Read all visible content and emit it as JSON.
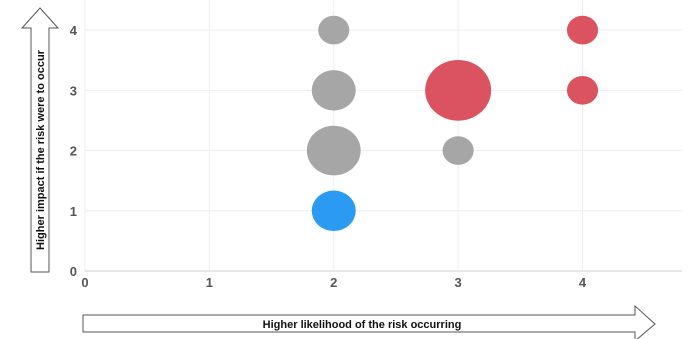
{
  "chart_data": {
    "type": "bubble",
    "xlabel": "Higher likelihood of the risk occurring",
    "ylabel": "Higher impact if the risk were to occur",
    "xlim": [
      0,
      4.8
    ],
    "ylim": [
      0,
      4.5
    ],
    "x_ticks": [
      0,
      1,
      2,
      3,
      4
    ],
    "y_ticks": [
      0,
      1,
      2,
      3,
      4
    ],
    "grid": true,
    "points": [
      {
        "x": 2,
        "y": 4,
        "size": 1.0,
        "color": "#a6a6a6"
      },
      {
        "x": 2,
        "y": 3,
        "size": 2.0,
        "color": "#a6a6a6"
      },
      {
        "x": 2,
        "y": 2,
        "size": 3.0,
        "color": "#a6a6a6"
      },
      {
        "x": 2,
        "y": 1,
        "size": 2.0,
        "color": "#2b9af3"
      },
      {
        "x": 3,
        "y": 2,
        "size": 1.0,
        "color": "#a6a6a6"
      },
      {
        "x": 3,
        "y": 3,
        "size": 4.5,
        "color": "#db5360"
      },
      {
        "x": 4,
        "y": 4,
        "size": 1.0,
        "color": "#db5360"
      },
      {
        "x": 4,
        "y": 3,
        "size": 1.0,
        "color": "#db5360"
      }
    ]
  }
}
